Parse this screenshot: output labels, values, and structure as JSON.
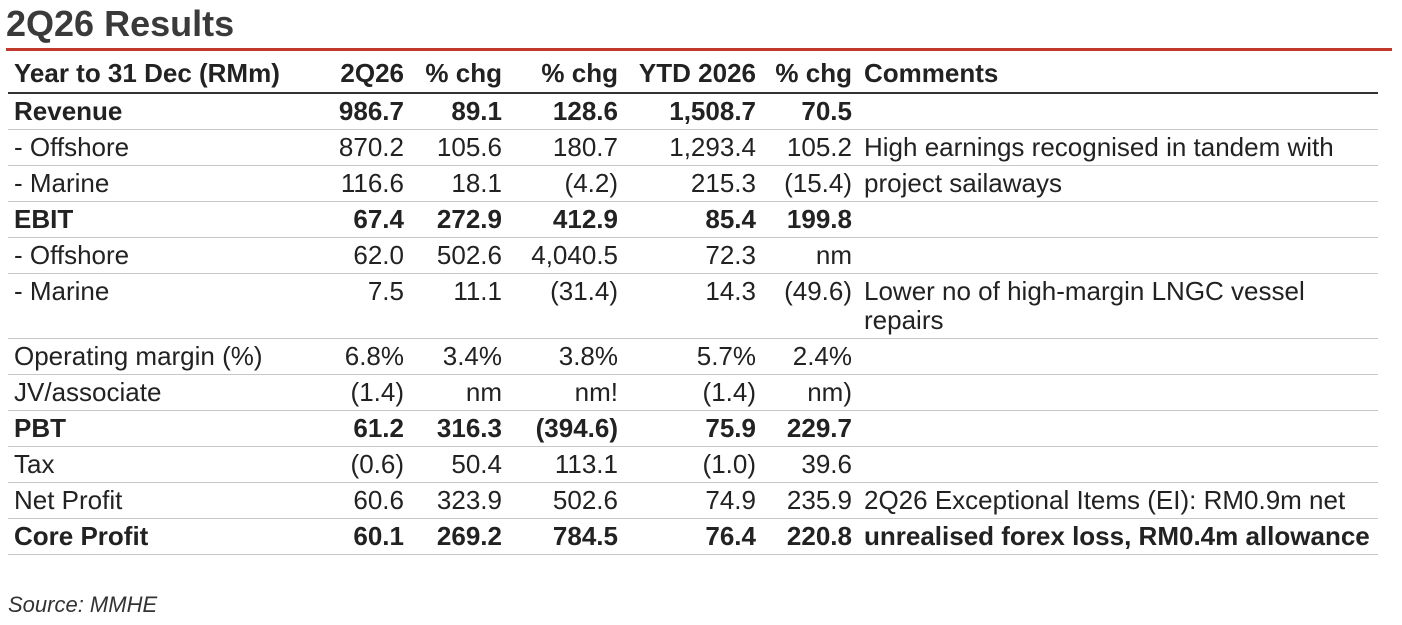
{
  "title": "2Q26 Results",
  "table": {
    "headers": [
      "Year to 31 Dec (RMm)",
      "2Q26",
      "% chg",
      "% chg",
      "YTD 2026",
      "% chg",
      "Comments"
    ],
    "rows": [
      {
        "label": "Revenue",
        "bold": true,
        "values": [
          "986.7",
          "89.1",
          "128.6",
          "1,508.7",
          "70.5"
        ],
        "comment": ""
      },
      {
        "label": "- Offshore",
        "bold": false,
        "values": [
          "870.2",
          "105.6",
          "180.7",
          "1,293.4",
          "105.2"
        ],
        "comment": "High earnings recognised in tandem with"
      },
      {
        "label": "- Marine",
        "bold": false,
        "values": [
          "116.6",
          "18.1",
          "(4.2)",
          "215.3",
          "(15.4)"
        ],
        "comment": "project sailaways"
      },
      {
        "label": "EBIT",
        "bold": true,
        "values": [
          "67.4",
          "272.9",
          "412.9",
          "85.4",
          "199.8"
        ],
        "comment": ""
      },
      {
        "label": "- Offshore",
        "bold": false,
        "values": [
          "62.0",
          "502.6",
          "4,040.5",
          "72.3",
          "nm"
        ],
        "comment": ""
      },
      {
        "label": "- Marine",
        "bold": false,
        "values": [
          "7.5",
          "11.1",
          "(31.4)",
          "14.3",
          "(49.6)"
        ],
        "comment": "Lower no of high-margin LNGC vessel repairs"
      },
      {
        "label": "Operating margin (%)",
        "bold": false,
        "values": [
          "6.8%",
          "3.4%",
          "3.8%",
          "5.7%",
          "2.4%"
        ],
        "comment": ""
      },
      {
        "label": "JV/associate",
        "bold": false,
        "values": [
          "(1.4)",
          "nm",
          "nm!",
          "(1.4)",
          "nm)"
        ],
        "comment": ""
      },
      {
        "label": "PBT",
        "bold": true,
        "values": [
          "61.2",
          "316.3",
          "(394.6)",
          "75.9",
          "229.7"
        ],
        "comment": ""
      },
      {
        "label": "Tax",
        "bold": false,
        "values": [
          "(0.6)",
          "50.4",
          "113.1",
          "(1.0)",
          "39.6"
        ],
        "comment": ""
      },
      {
        "label": "Net Profit",
        "bold": false,
        "values": [
          "60.6",
          "323.9",
          "502.6",
          "74.9",
          "235.9"
        ],
        "comment": "2Q26 Exceptional Items (EI): RM0.9m net"
      },
      {
        "label": "Core Profit",
        "bold": true,
        "values": [
          "60.1",
          "269.2",
          "784.5",
          "76.4",
          "220.8"
        ],
        "comment": "unrealised forex loss, RM0.4m allowance"
      }
    ]
  },
  "source": "Source: MMHE"
}
